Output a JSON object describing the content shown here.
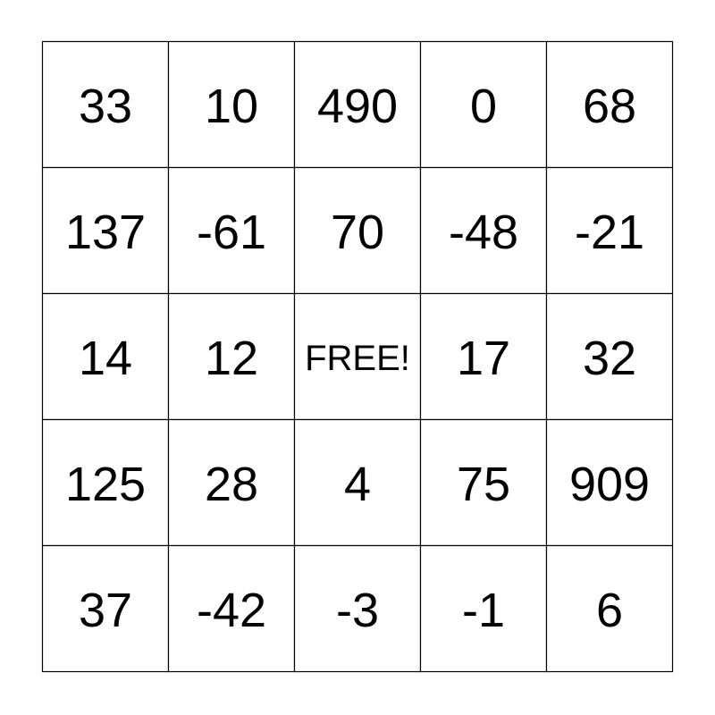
{
  "grid": {
    "rows": [
      [
        33,
        10,
        490,
        0,
        68
      ],
      [
        137,
        -61,
        70,
        -48,
        -21
      ],
      [
        14,
        12,
        "FREE!",
        17,
        32
      ],
      [
        125,
        28,
        4,
        75,
        909
      ],
      [
        37,
        -42,
        -3,
        -1,
        6
      ]
    ]
  }
}
